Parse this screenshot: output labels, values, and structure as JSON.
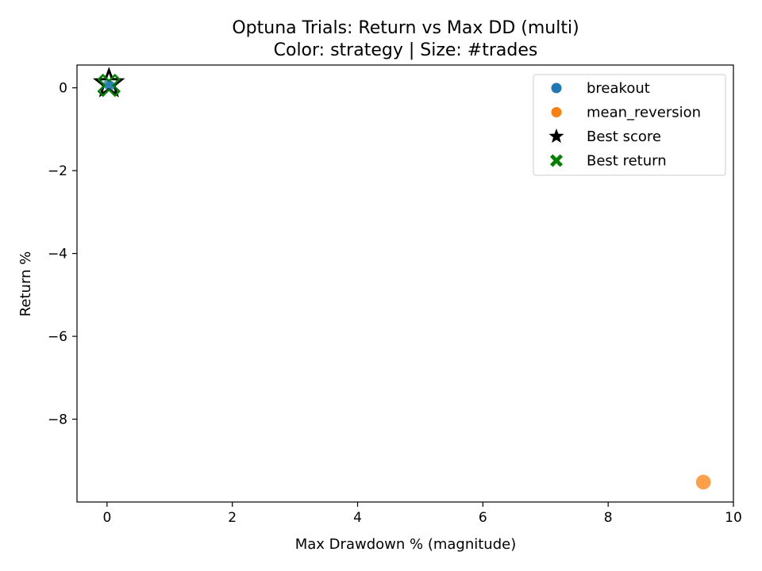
{
  "chart_data": {
    "type": "scatter",
    "title": "Optuna Trials: Return vs Max DD (multi)",
    "subtitle": "Color: strategy | Size: #trades",
    "xlabel": "Max Drawdown % (magnitude)",
    "ylabel": "Return %",
    "xlim": [
      -0.48,
      10.0
    ],
    "ylim": [
      -10.0,
      0.55
    ],
    "x_ticks": [
      0,
      2,
      4,
      6,
      8,
      10
    ],
    "x_tick_labels": [
      "0",
      "2",
      "4",
      "6",
      "8",
      "10"
    ],
    "y_ticks": [
      0,
      -2,
      -4,
      -6,
      -8
    ],
    "y_tick_labels": [
      "0",
      "−2",
      "−4",
      "−6",
      "−8"
    ],
    "grid": false,
    "legend_placement": "top-right",
    "series": [
      {
        "name": "breakout",
        "color": "#1f77b4",
        "marker": "circle",
        "points": [
          {
            "x": 0.02,
            "y": 0.08,
            "trades": 12
          },
          {
            "x": 0.05,
            "y": 0.05,
            "trades": 10
          }
        ]
      },
      {
        "name": "mean_reversion",
        "color": "#ff7f0e",
        "marker": "circle",
        "points": [
          {
            "x": 9.52,
            "y": -9.52,
            "trades": 40
          }
        ]
      },
      {
        "name": "Best score",
        "color": "#000000",
        "marker": "star",
        "points": [
          {
            "x": 0.03,
            "y": 0.1
          }
        ]
      },
      {
        "name": "Best return",
        "color": "#008000",
        "marker": "x",
        "points": [
          {
            "x": 0.03,
            "y": 0.06
          }
        ]
      }
    ]
  }
}
